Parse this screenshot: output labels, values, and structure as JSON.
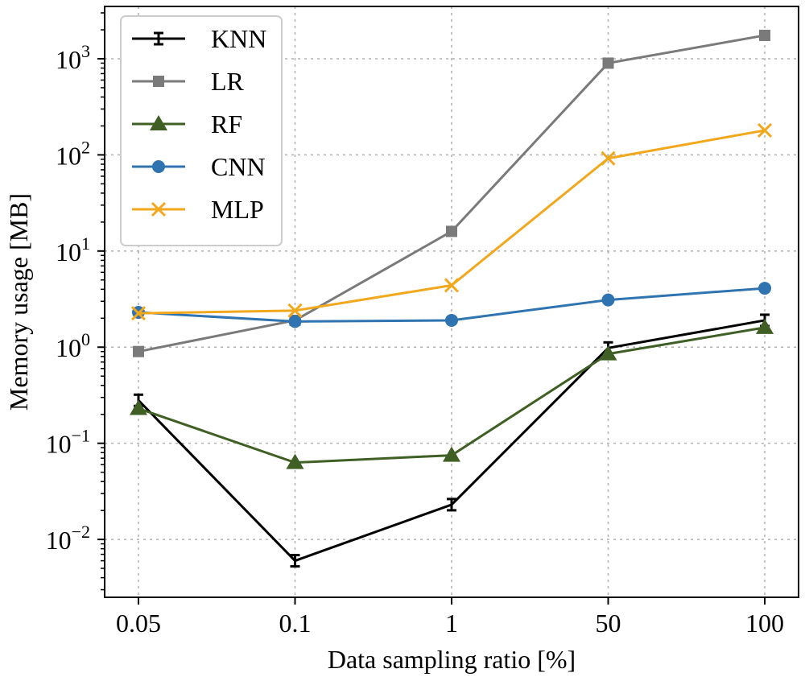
{
  "chart_data": {
    "type": "line",
    "title": "",
    "xlabel": "Data sampling ratio [%]",
    "ylabel": "Memory usage [MB]",
    "y_scale": "log",
    "ylim": [
      0.0025,
      3500
    ],
    "grid": true,
    "legend_position": "top-left",
    "categories": [
      "0.05",
      "0.1",
      "1",
      "50",
      "100"
    ],
    "y_ticks": [
      {
        "value": 0.01,
        "base": "10",
        "exp": "−2"
      },
      {
        "value": 0.1,
        "base": "10",
        "exp": "−1"
      },
      {
        "value": 1,
        "base": "10",
        "exp": "0"
      },
      {
        "value": 10,
        "base": "10",
        "exp": "1"
      },
      {
        "value": 100,
        "base": "10",
        "exp": "2"
      },
      {
        "value": 1000,
        "base": "10",
        "exp": "3"
      }
    ],
    "series": [
      {
        "name": "KNN",
        "color": "#000000",
        "marker": "errorbar",
        "values": [
          0.28,
          0.006,
          0.023,
          0.98,
          1.9
        ]
      },
      {
        "name": "LR",
        "color": "#7a7a7a",
        "marker": "square",
        "values": [
          0.9,
          1.9,
          16,
          900,
          1750
        ]
      },
      {
        "name": "RF",
        "color": "#3f5f24",
        "marker": "triangle",
        "values": [
          0.23,
          0.063,
          0.075,
          0.85,
          1.6
        ]
      },
      {
        "name": "CNN",
        "color": "#2f74b0",
        "marker": "circle",
        "values": [
          2.3,
          1.85,
          1.9,
          3.1,
          4.1
        ]
      },
      {
        "name": "MLP",
        "color": "#f2a81d",
        "marker": "x",
        "values": [
          2.25,
          2.4,
          4.4,
          92,
          180
        ]
      }
    ]
  }
}
